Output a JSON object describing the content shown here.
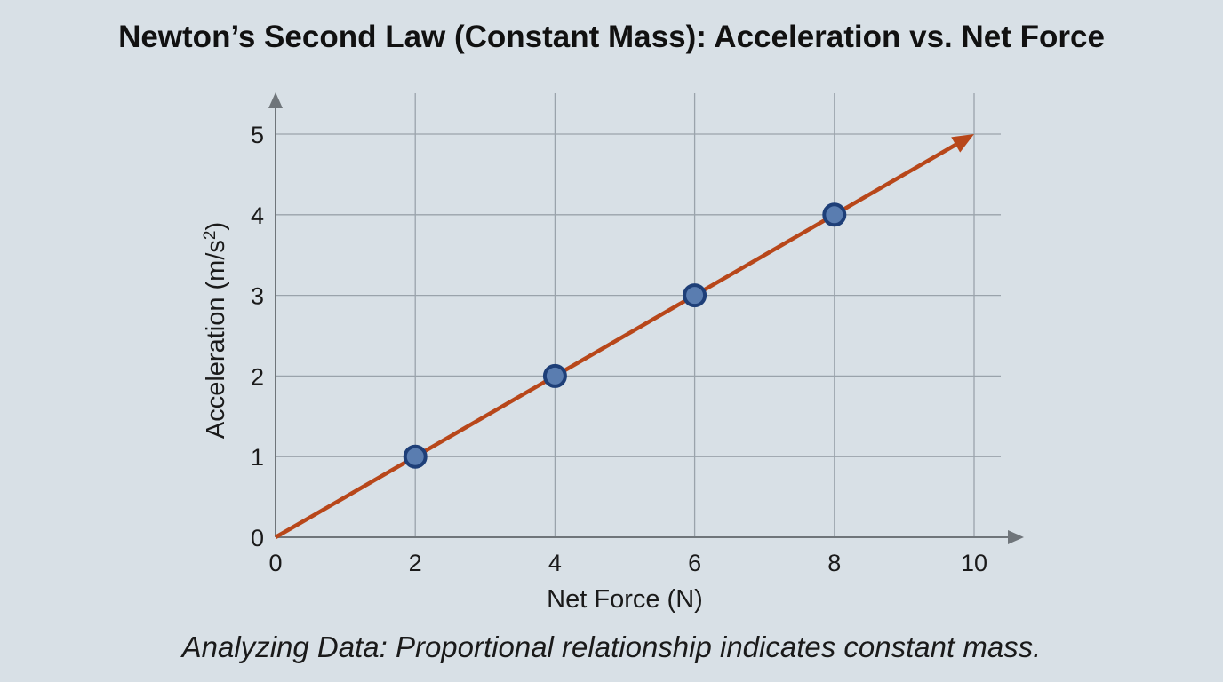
{
  "chart_data": {
    "type": "line",
    "title": "Newton’s Second Law (Constant Mass): Acceleration vs. Net Force",
    "caption": "Analyzing Data: Proportional relationship indicates constant mass.",
    "xlabel": "Net Force (N)",
    "ylabel_main": "Acceleration (m/s",
    "ylabel_sup": "2",
    "ylabel_end": ")",
    "xlim": [
      0,
      10
    ],
    "ylim": [
      0,
      5
    ],
    "xticks": [
      0,
      2,
      4,
      6,
      8,
      10
    ],
    "yticks": [
      0,
      1,
      2,
      3,
      4,
      5
    ],
    "grid": true,
    "trend_line": {
      "x": [
        0,
        10
      ],
      "y": [
        0,
        5
      ],
      "arrow": true
    },
    "points": {
      "x": [
        2,
        4,
        6,
        8
      ],
      "y": [
        1,
        2,
        3,
        4
      ]
    },
    "colors": {
      "background": "#d8e0e6",
      "line": "#b8471a",
      "marker_fill": "#5a7db0",
      "marker_edge": "#1e3f78",
      "grid": "#9aa3ab",
      "axis": "#6f757a"
    }
  }
}
